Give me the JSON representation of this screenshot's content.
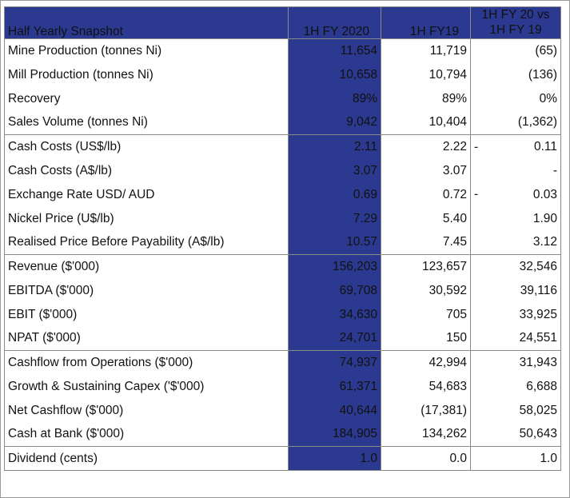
{
  "header": {
    "label": "Half Yearly Snapshot",
    "current": "1H FY 2020",
    "previous": "1H FY19",
    "variance_line1": "1H FY 20 vs",
    "variance_line2": "1H FY 19"
  },
  "rows": [
    {
      "label": "Mine Production (tonnes Ni)",
      "current": "11,654",
      "previous": "11,719",
      "variance_dash": "",
      "variance": "(65)"
    },
    {
      "label": "Mill Production (tonnes Ni)",
      "current": "10,658",
      "previous": "10,794",
      "variance_dash": "",
      "variance": "(136)"
    },
    {
      "label": "Recovery",
      "current": "89%",
      "previous": "89%",
      "variance_dash": "",
      "variance": "0%"
    },
    {
      "label": "Sales Volume (tonnes Ni)",
      "current": "9,042",
      "previous": "10,404",
      "variance_dash": "",
      "variance": "(1,362)"
    },
    {
      "label": "Cash Costs (US$/lb)",
      "current": "2.11",
      "previous": "2.22",
      "variance_dash": "-",
      "variance": "0.11"
    },
    {
      "label": "Cash Costs (A$/lb)",
      "current": "3.07",
      "previous": "3.07",
      "variance_dash": "",
      "variance": "-"
    },
    {
      "label": "Exchange Rate USD/ AUD",
      "current": "0.69",
      "previous": "0.72",
      "variance_dash": "-",
      "variance": "0.03"
    },
    {
      "label": "Nickel Price (U$/lb)",
      "current": "7.29",
      "previous": "5.40",
      "variance_dash": "",
      "variance": "1.90"
    },
    {
      "label": "Realised Price Before Payability (A$/lb)",
      "current": "10.57",
      "previous": "7.45",
      "variance_dash": "",
      "variance": "3.12"
    },
    {
      "label": "Revenue ($'000)",
      "current": "156,203",
      "previous": "123,657",
      "variance_dash": "",
      "variance": "32,546"
    },
    {
      "label": "EBITDA ($'000)",
      "current": "69,708",
      "previous": "30,592",
      "variance_dash": "",
      "variance": "39,116"
    },
    {
      "label": "EBIT ($'000)",
      "current": "34,630",
      "previous": "705",
      "variance_dash": "",
      "variance": "33,925"
    },
    {
      "label": "NPAT ($'000)",
      "current": "24,701",
      "previous": "150",
      "variance_dash": "",
      "variance": "24,551"
    },
    {
      "label": "Cashflow from Operations ($'000)",
      "current": "74,937",
      "previous": "42,994",
      "variance_dash": "",
      "variance": "31,943"
    },
    {
      "label": "Growth & Sustaining Capex ('$'000)",
      "current": "61,371",
      "previous": "54,683",
      "variance_dash": "",
      "variance": "6,688"
    },
    {
      "label": "Net Cashflow ($'000)",
      "current": "40,644",
      "previous": "(17,381)",
      "variance_dash": "",
      "variance": "58,025"
    },
    {
      "label": "Cash at Bank ($'000)",
      "current": "184,905",
      "previous": "134,262",
      "variance_dash": "",
      "variance": "50,643"
    },
    {
      "label": "Dividend (cents)",
      "current": "1.0",
      "previous": "0.0",
      "variance_dash": "",
      "variance": "1.0"
    }
  ],
  "colors": {
    "header_bg": "#2b3990",
    "header_text": "#ffffff"
  }
}
